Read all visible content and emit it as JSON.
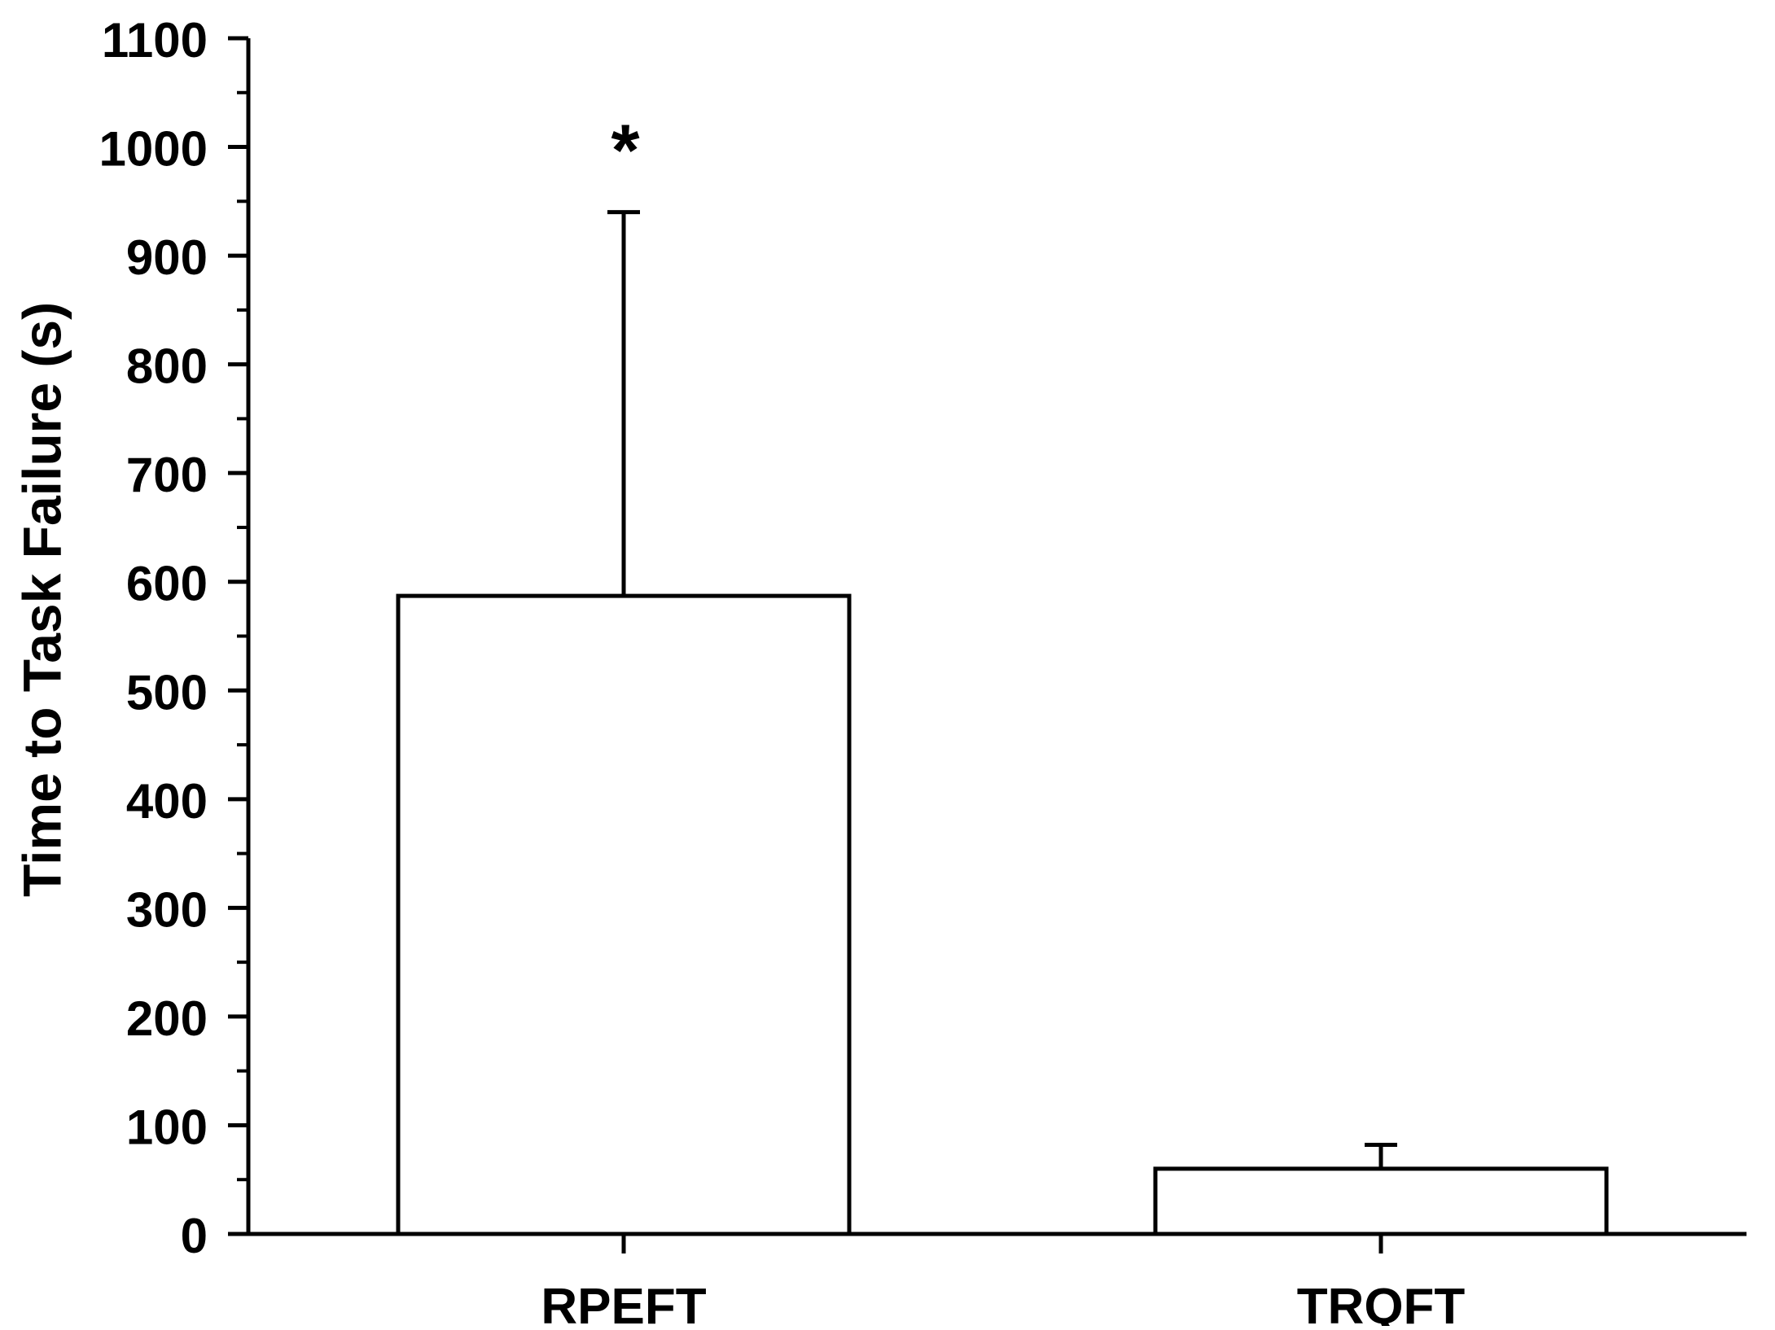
{
  "chart_data": {
    "type": "bar",
    "title": "",
    "xlabel": "",
    "ylabel": "Time to Task Failure (s)",
    "categories": [
      "RPEFT",
      "TRQFT"
    ],
    "values": [
      587,
      60
    ],
    "error_upper": [
      940,
      82
    ],
    "ylim": [
      0,
      1100
    ],
    "yticks": [
      0,
      100,
      200,
      300,
      400,
      500,
      600,
      700,
      800,
      900,
      1000,
      1100
    ],
    "yticks_minor_step": 50,
    "annotations": [
      {
        "category": "RPEFT",
        "text": "*"
      }
    ],
    "grid": false,
    "legend": "none",
    "bar_fill": "#ffffff",
    "bar_stroke": "#000000"
  }
}
